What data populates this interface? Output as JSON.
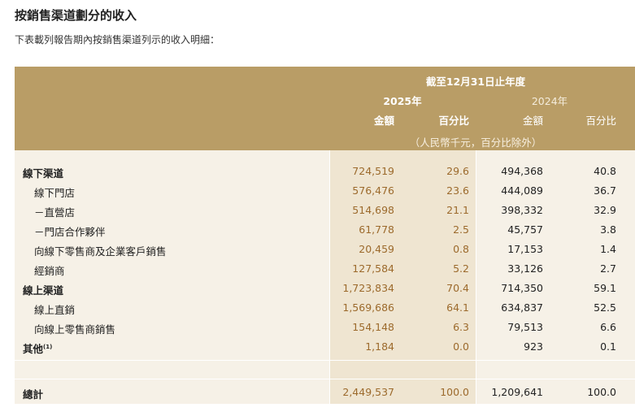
{
  "header": {
    "title": "按銷售渠道劃分的收入",
    "subtitle": "下表載列報告期內按銷售渠道列示的收入明細："
  },
  "table": {
    "period": "截至12月31日止年度",
    "years": [
      "2025年",
      "2024年"
    ],
    "columns": [
      "金額",
      "百分比",
      "金額",
      "百分比"
    ],
    "unit": "（人民幣千元，百分比除外）",
    "rows": [
      {
        "label": "線下渠道",
        "values": [
          "724,519",
          "29.6",
          "494,368",
          "40.8"
        ]
      },
      {
        "label": "線下門店",
        "values": [
          "576,476",
          "23.6",
          "444,089",
          "36.7"
        ]
      },
      {
        "label": "－直營店",
        "values": [
          "514,698",
          "21.1",
          "398,332",
          "32.9"
        ]
      },
      {
        "label": "－門店合作夥伴",
        "values": [
          "61,778",
          "2.5",
          "45,757",
          "3.8"
        ]
      },
      {
        "label": "向線下零售商及企業客戶銷售",
        "values": [
          "20,459",
          "0.8",
          "17,153",
          "1.4"
        ]
      },
      {
        "label": "經銷商",
        "values": [
          "127,584",
          "5.2",
          "33,126",
          "2.7"
        ]
      },
      {
        "label": "線上渠道",
        "values": [
          "1,723,834",
          "70.4",
          "714,350",
          "59.1"
        ]
      },
      {
        "label": "線上直銷",
        "values": [
          "1,569,686",
          "64.1",
          "634,837",
          "52.5"
        ]
      },
      {
        "label": "向線上零售商銷售",
        "values": [
          "154,148",
          "6.3",
          "79,513",
          "6.6"
        ]
      },
      {
        "label": "其他",
        "note": "(1)",
        "values": [
          "1,184",
          "0.0",
          "923",
          "0.1"
        ]
      }
    ],
    "total": {
      "label": "總計",
      "values": [
        "2,449,537",
        "100.0",
        "1,209,641",
        "100.0"
      ]
    }
  }
}
